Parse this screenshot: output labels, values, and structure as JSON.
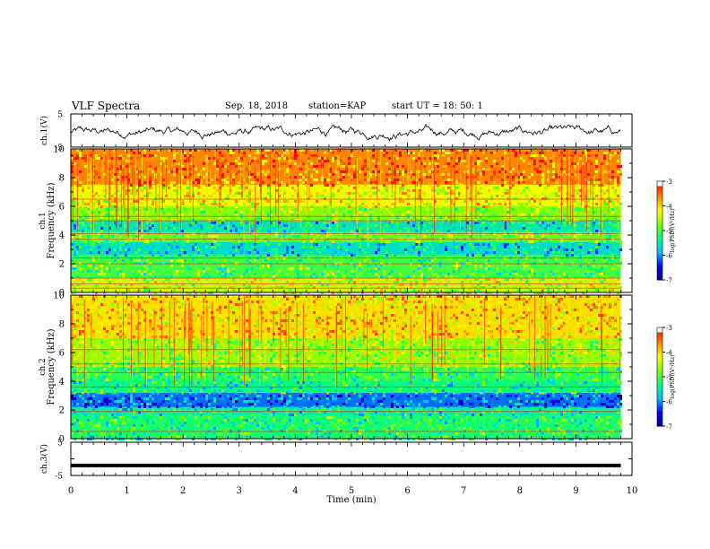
{
  "header": {
    "title": "VLF Spectra",
    "date": "Sep. 18, 2018",
    "station": "station=KAP",
    "start_ut": "start  UT =   18: 50: 1"
  },
  "chart_data": [
    {
      "type": "line",
      "name": "ch1-waveform",
      "ylabel": "ch.1(V)",
      "ylim": [
        -5,
        5
      ],
      "yticks": [
        5,
        -5
      ],
      "xlim": [
        0,
        10
      ],
      "series": [
        {
          "style": "noisy waveform",
          "mean": -0.5,
          "amplitude": 2.5,
          "x_end": 9.8
        }
      ]
    },
    {
      "type": "heatmap",
      "name": "ch1-spectrogram",
      "ylabel_1": "ch.1",
      "ylabel_2": "Frequency (kHz)",
      "xlim": [
        0,
        9.8
      ],
      "ylim": [
        0,
        10
      ],
      "yticks": [
        "0",
        "2",
        "4",
        "6",
        "8",
        "10"
      ],
      "colorbar": {
        "label": "log(PSD)(V²/Hz)",
        "ticks": [
          "-3",
          "-4",
          "-5",
          "-6",
          "-7"
        ],
        "range": [
          -7,
          -3
        ]
      },
      "bands": [
        {
          "f0": 0.0,
          "f1": 1.0,
          "level": -4.4
        },
        {
          "f0": 1.0,
          "f1": 2.6,
          "level": -5.0
        },
        {
          "f0": 2.6,
          "f1": 3.5,
          "level": -5.6
        },
        {
          "f0": 3.5,
          "f1": 4.2,
          "level": -4.8
        },
        {
          "f0": 4.2,
          "f1": 5.0,
          "level": -5.5
        },
        {
          "f0": 5.0,
          "f1": 6.0,
          "level": -4.7
        },
        {
          "f0": 6.0,
          "f1": 7.5,
          "level": -4.2
        },
        {
          "f0": 7.5,
          "f1": 10.0,
          "level": -3.6
        }
      ],
      "lines_khz": [
        0.3,
        0.6,
        1.0,
        2.0,
        2.4,
        3.7,
        4.1,
        5.0,
        5.3,
        6.5
      ]
    },
    {
      "type": "heatmap",
      "name": "ch2-spectrogram",
      "ylabel_1": "ch.2",
      "ylabel_2": "Frequency (kHz)",
      "xlim": [
        0,
        9.8
      ],
      "ylim": [
        0,
        10
      ],
      "yticks": [
        "0",
        "2",
        "4",
        "6",
        "8",
        "10"
      ],
      "colorbar": {
        "label": "log(PSD)(V²/Hz)",
        "ticks": [
          "-3",
          "-4",
          "-5",
          "-6",
          "-7"
        ],
        "range": [
          -7,
          -3
        ]
      },
      "bands": [
        {
          "f0": 0.0,
          "f1": 1.6,
          "level": -5.2
        },
        {
          "f0": 1.6,
          "f1": 2.2,
          "level": -5.4
        },
        {
          "f0": 2.2,
          "f1": 3.2,
          "level": -6.1
        },
        {
          "f0": 3.2,
          "f1": 4.0,
          "level": -5.3
        },
        {
          "f0": 4.0,
          "f1": 5.0,
          "level": -5.1
        },
        {
          "f0": 5.0,
          "f1": 7.0,
          "level": -4.6
        },
        {
          "f0": 7.0,
          "f1": 10.0,
          "level": -4.0
        }
      ],
      "lines_khz": [
        0.5,
        1.9,
        3.1,
        3.6,
        4.6,
        5.2,
        6.2
      ]
    },
    {
      "type": "line",
      "name": "ch3-waveform",
      "ylabel": "ch.3(V)",
      "ylim": [
        -5,
        5
      ],
      "yticks": [
        5,
        0,
        -5
      ],
      "xlim": [
        0,
        10
      ],
      "series": [
        {
          "style": "thick flat line",
          "value": -2,
          "x_end": 9.8
        }
      ]
    }
  ],
  "time_axis": {
    "label": "Time (min)",
    "ticks": [
      "0",
      "1",
      "2",
      "3",
      "4",
      "5",
      "6",
      "7",
      "8",
      "9",
      "10"
    ],
    "range": [
      0,
      10
    ]
  },
  "colors": {
    "colormap": [
      "#000080",
      "#0000ff",
      "#00bfff",
      "#00ff80",
      "#80ff00",
      "#ffff00",
      "#ff8000",
      "#ff0000",
      "#ffffff"
    ]
  }
}
